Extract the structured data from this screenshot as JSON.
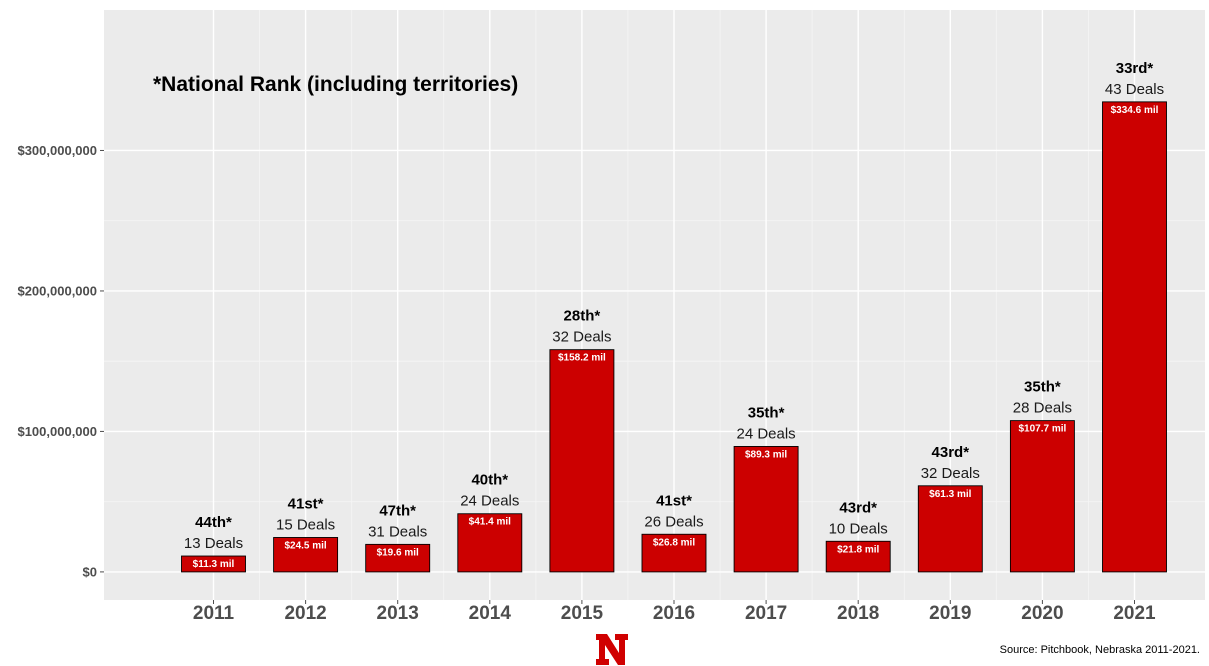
{
  "chart_data": {
    "type": "bar",
    "categories": [
      "2011",
      "2012",
      "2013",
      "2014",
      "2015",
      "2016",
      "2017",
      "2018",
      "2019",
      "2020",
      "2021"
    ],
    "values": [
      11300000,
      24500000,
      19600000,
      41400000,
      158200000,
      26800000,
      89300000,
      21800000,
      61300000,
      107700000,
      334600000
    ],
    "value_labels": [
      "$11.3 mil",
      "$24.5 mil",
      "$19.6 mil",
      "$41.4 mil",
      "$158.2 mil",
      "$26.8 mil",
      "$89.3 mil",
      "$21.8 mil",
      "$61.3 mil",
      "$107.7 mil",
      "$334.6 mil"
    ],
    "ranks": [
      "44th*",
      "41st*",
      "47th*",
      "40th*",
      "28th*",
      "41st*",
      "35th*",
      "43rd*",
      "43rd*",
      "35th*",
      "33rd*"
    ],
    "deals": [
      "13 Deals",
      "15 Deals",
      "31 Deals",
      "24 Deals",
      "32 Deals",
      "26 Deals",
      "24 Deals",
      "10 Deals",
      "32 Deals",
      "28 Deals",
      "43 Deals"
    ],
    "yticks": [
      0,
      100000000,
      200000000,
      300000000
    ],
    "ytick_labels": [
      "$0",
      "$100,000,000",
      "$200,000,000",
      "$300,000,000"
    ],
    "ylim": [
      -20000000,
      400000000
    ],
    "annotation": "*National Rank (including territories)",
    "xlabel": "",
    "ylabel": "",
    "grid": true,
    "colors": {
      "bar": "#cc0000",
      "bar_outline": "#000000",
      "panel": "#ebebeb",
      "grid_major": "#ffffff"
    }
  },
  "footer": {
    "source": "Source: Pitchbook, Nebraska 2011-2021.",
    "logo_letter": "N",
    "logo_color": "#d00000"
  }
}
